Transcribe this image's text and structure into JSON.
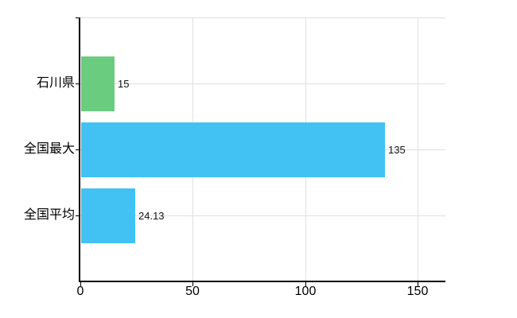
{
  "chart_data": {
    "type": "bar",
    "orientation": "horizontal",
    "title": "",
    "xlabel": "",
    "ylabel": "",
    "categories": [
      "石川県",
      "全国最大",
      "全国平均"
    ],
    "values": [
      15,
      135,
      24.13
    ],
    "value_labels": [
      "15",
      "135",
      "24.13"
    ],
    "bar_colors": [
      "#69cc7f",
      "#41c2f3",
      "#41c2f3"
    ],
    "x_ticks": [
      0,
      50,
      100,
      150
    ],
    "x_tick_labels": [
      "0",
      "50",
      "100",
      "150"
    ],
    "xlim": [
      0,
      162
    ],
    "grid": true,
    "legend": "none",
    "gridline_color": "#dfdfdf",
    "axis_color": "#000000",
    "background_color": "#ffffff"
  }
}
